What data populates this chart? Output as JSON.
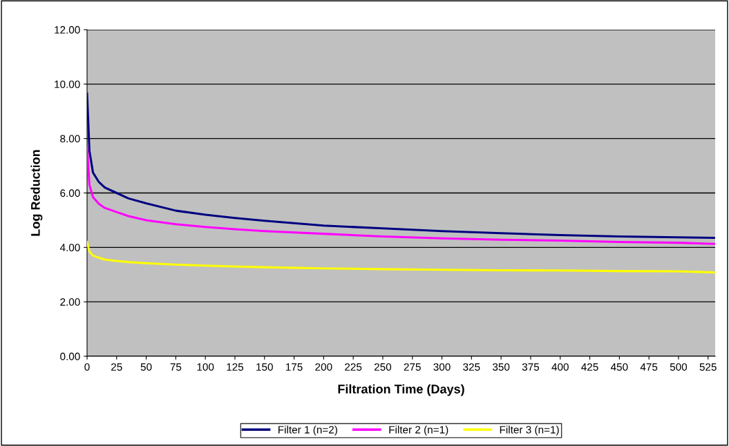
{
  "chart_data": {
    "type": "line",
    "xlabel": "Filtration Time (Days)",
    "ylabel": "Log Reduction",
    "xlim": [
      0,
      531
    ],
    "xticks": [
      0,
      25,
      50,
      75,
      100,
      125,
      150,
      175,
      200,
      225,
      250,
      275,
      300,
      325,
      350,
      375,
      400,
      425,
      450,
      475,
      500,
      525
    ],
    "ylim": [
      0,
      12
    ],
    "yticks": [
      {
        "value": 0,
        "label": "0.00"
      },
      {
        "value": 2,
        "label": "2.00"
      },
      {
        "value": 4,
        "label": "4.00"
      },
      {
        "value": 6,
        "label": "6.00"
      },
      {
        "value": 8,
        "label": "8.00"
      },
      {
        "value": 10,
        "label": "10.00"
      },
      {
        "value": 12,
        "label": "12.00"
      }
    ],
    "grid": "y",
    "legend": "bottom",
    "marker": "none",
    "line_style": "solid",
    "x": [
      0,
      2,
      5,
      10,
      15,
      25,
      35,
      50,
      75,
      100,
      125,
      150,
      200,
      250,
      300,
      350,
      400,
      450,
      500,
      530
    ],
    "series": [
      {
        "name": "Filter 1 (n=2)",
        "color": "#000080",
        "values": [
          9.65,
          7.55,
          6.75,
          6.4,
          6.2,
          6.0,
          5.8,
          5.62,
          5.35,
          5.2,
          5.08,
          4.98,
          4.8,
          4.7,
          4.6,
          4.52,
          4.45,
          4.4,
          4.37,
          4.35
        ]
      },
      {
        "name": "Filter 2 (n=1)",
        "color": "#ff00ff",
        "values": [
          7.7,
          6.3,
          5.85,
          5.6,
          5.45,
          5.3,
          5.15,
          5.0,
          4.85,
          4.75,
          4.67,
          4.6,
          4.5,
          4.4,
          4.33,
          4.28,
          4.25,
          4.2,
          4.17,
          4.13
        ]
      },
      {
        "name": "Filter 3 (n=1)",
        "color": "#ffff00",
        "values": [
          4.2,
          3.85,
          3.7,
          3.62,
          3.55,
          3.5,
          3.46,
          3.42,
          3.37,
          3.33,
          3.3,
          3.27,
          3.23,
          3.2,
          3.18,
          3.16,
          3.15,
          3.13,
          3.12,
          3.08
        ]
      }
    ]
  }
}
